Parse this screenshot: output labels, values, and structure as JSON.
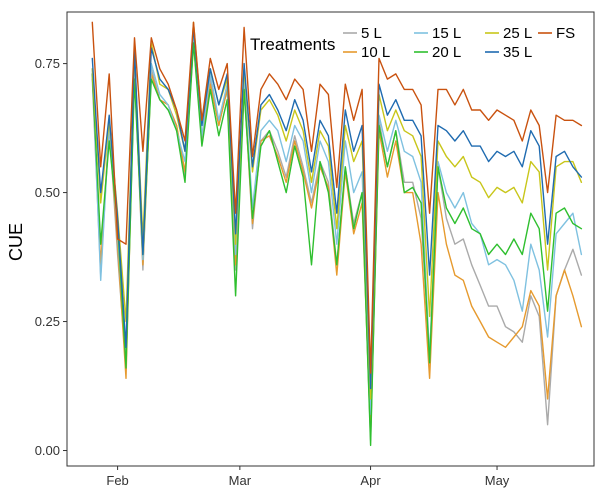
{
  "chart_data": {
    "type": "line",
    "title": "",
    "xlabel": "",
    "ylabel": "CUE",
    "xlim": [
      "2020-01-20",
      "2020-05-24"
    ],
    "ylim": [
      -0.03,
      0.85
    ],
    "grid": false,
    "x_ticks": [
      {
        "label": "Feb",
        "date": "2020-02-01"
      },
      {
        "label": "Mar",
        "date": "2020-03-01"
      },
      {
        "label": "Apr",
        "date": "2020-04-01"
      },
      {
        "label": "May",
        "date": "2020-05-01"
      }
    ],
    "y_ticks": [
      0.0,
      0.25,
      0.5,
      0.75
    ],
    "y_tick_labels": [
      "0.00",
      "0.25",
      "0.50",
      "0.75"
    ],
    "legend": {
      "title": "Treatments",
      "position": "top-right",
      "columns": 4
    },
    "x": [
      "2020-01-26",
      "2020-01-28",
      "2020-01-30",
      "2020-02-01",
      "2020-02-03",
      "2020-02-05",
      "2020-02-07",
      "2020-02-09",
      "2020-02-11",
      "2020-02-13",
      "2020-02-15",
      "2020-02-17",
      "2020-02-19",
      "2020-02-21",
      "2020-02-23",
      "2020-02-25",
      "2020-02-27",
      "2020-02-29",
      "2020-03-02",
      "2020-03-04",
      "2020-03-06",
      "2020-03-08",
      "2020-03-10",
      "2020-03-12",
      "2020-03-14",
      "2020-03-16",
      "2020-03-18",
      "2020-03-20",
      "2020-03-22",
      "2020-03-24",
      "2020-03-26",
      "2020-03-28",
      "2020-03-30",
      "2020-04-01",
      "2020-04-03",
      "2020-04-05",
      "2020-04-07",
      "2020-04-09",
      "2020-04-11",
      "2020-04-13",
      "2020-04-15",
      "2020-04-17",
      "2020-04-19",
      "2020-04-21",
      "2020-04-23",
      "2020-04-25",
      "2020-04-27",
      "2020-04-29",
      "2020-05-01",
      "2020-05-03",
      "2020-05-05",
      "2020-05-07",
      "2020-05-09",
      "2020-05-11",
      "2020-05-13",
      "2020-05-15",
      "2020-05-17",
      "2020-05-19",
      "2020-05-21"
    ],
    "series": [
      {
        "name": "5 L",
        "color": "#aaaaaa",
        "values": [
          0.72,
          0.34,
          0.63,
          0.38,
          0.16,
          0.74,
          0.35,
          0.74,
          0.68,
          0.66,
          0.63,
          0.53,
          0.8,
          0.6,
          0.72,
          0.63,
          0.7,
          0.35,
          0.71,
          0.43,
          0.6,
          0.62,
          0.58,
          0.53,
          0.61,
          0.55,
          0.48,
          0.56,
          0.52,
          0.36,
          0.55,
          0.44,
          0.5,
          0.02,
          0.64,
          0.55,
          0.62,
          0.52,
          0.52,
          0.45,
          0.18,
          0.55,
          0.45,
          0.4,
          0.41,
          0.36,
          0.32,
          0.28,
          0.28,
          0.24,
          0.23,
          0.21,
          0.3,
          0.26,
          0.05,
          0.3,
          0.35,
          0.39,
          0.34
        ]
      },
      {
        "name": "10 L",
        "color": "#e69a2e",
        "values": [
          0.73,
          0.36,
          0.63,
          0.4,
          0.14,
          0.74,
          0.36,
          0.73,
          0.68,
          0.67,
          0.63,
          0.54,
          0.79,
          0.61,
          0.71,
          0.63,
          0.7,
          0.36,
          0.7,
          0.44,
          0.6,
          0.61,
          0.57,
          0.52,
          0.6,
          0.54,
          0.47,
          0.55,
          0.51,
          0.34,
          0.54,
          0.42,
          0.48,
          0.03,
          0.62,
          0.53,
          0.6,
          0.5,
          0.5,
          0.4,
          0.14,
          0.5,
          0.4,
          0.34,
          0.33,
          0.28,
          0.25,
          0.22,
          0.21,
          0.2,
          0.22,
          0.24,
          0.31,
          0.28,
          0.1,
          0.3,
          0.35,
          0.3,
          0.24
        ]
      },
      {
        "name": "15 L",
        "color": "#7fc1e0",
        "values": [
          0.74,
          0.33,
          0.63,
          0.42,
          0.18,
          0.75,
          0.37,
          0.75,
          0.69,
          0.67,
          0.62,
          0.56,
          0.81,
          0.61,
          0.73,
          0.64,
          0.71,
          0.38,
          0.72,
          0.47,
          0.62,
          0.64,
          0.62,
          0.56,
          0.63,
          0.6,
          0.5,
          0.6,
          0.56,
          0.4,
          0.6,
          0.5,
          0.54,
          0.07,
          0.65,
          0.58,
          0.64,
          0.58,
          0.57,
          0.52,
          0.18,
          0.56,
          0.5,
          0.47,
          0.5,
          0.44,
          0.42,
          0.36,
          0.37,
          0.36,
          0.33,
          0.27,
          0.4,
          0.35,
          0.22,
          0.42,
          0.44,
          0.46,
          0.38
        ]
      },
      {
        "name": "20 L",
        "color": "#2fbf2f",
        "values": [
          0.73,
          0.4,
          0.6,
          0.44,
          0.16,
          0.72,
          0.38,
          0.72,
          0.68,
          0.66,
          0.62,
          0.52,
          0.79,
          0.59,
          0.7,
          0.61,
          0.68,
          0.3,
          0.7,
          0.45,
          0.59,
          0.62,
          0.56,
          0.5,
          0.59,
          0.53,
          0.36,
          0.56,
          0.5,
          0.36,
          0.55,
          0.43,
          0.5,
          0.01,
          0.63,
          0.55,
          0.62,
          0.5,
          0.51,
          0.48,
          0.17,
          0.55,
          0.47,
          0.44,
          0.47,
          0.43,
          0.42,
          0.38,
          0.4,
          0.38,
          0.41,
          0.38,
          0.46,
          0.43,
          0.27,
          0.46,
          0.47,
          0.44,
          0.43
        ]
      },
      {
        "name": "25 L",
        "color": "#c8c61a",
        "values": [
          0.74,
          0.48,
          0.64,
          0.46,
          0.25,
          0.77,
          0.41,
          0.79,
          0.71,
          0.7,
          0.65,
          0.58,
          0.83,
          0.64,
          0.74,
          0.67,
          0.72,
          0.4,
          0.74,
          0.54,
          0.66,
          0.68,
          0.65,
          0.6,
          0.66,
          0.62,
          0.52,
          0.62,
          0.59,
          0.43,
          0.63,
          0.56,
          0.6,
          0.1,
          0.69,
          0.62,
          0.66,
          0.62,
          0.61,
          0.57,
          0.26,
          0.6,
          0.57,
          0.55,
          0.57,
          0.53,
          0.52,
          0.49,
          0.51,
          0.5,
          0.51,
          0.48,
          0.56,
          0.54,
          0.35,
          0.55,
          0.56,
          0.56,
          0.52
        ]
      },
      {
        "name": "35 L",
        "color": "#1f6bb0",
        "values": [
          0.76,
          0.5,
          0.65,
          0.45,
          0.2,
          0.78,
          0.38,
          0.78,
          0.72,
          0.7,
          0.66,
          0.58,
          0.82,
          0.63,
          0.74,
          0.67,
          0.73,
          0.42,
          0.75,
          0.55,
          0.67,
          0.69,
          0.66,
          0.62,
          0.68,
          0.64,
          0.54,
          0.64,
          0.61,
          0.46,
          0.66,
          0.58,
          0.63,
          0.12,
          0.71,
          0.65,
          0.68,
          0.64,
          0.64,
          0.61,
          0.34,
          0.63,
          0.62,
          0.6,
          0.62,
          0.59,
          0.59,
          0.56,
          0.58,
          0.57,
          0.58,
          0.55,
          0.62,
          0.59,
          0.4,
          0.57,
          0.58,
          0.55,
          0.53
        ]
      },
      {
        "name": "FS",
        "color": "#c9520f",
        "values": [
          0.83,
          0.55,
          0.73,
          0.41,
          0.4,
          0.8,
          0.58,
          0.8,
          0.74,
          0.71,
          0.66,
          0.6,
          0.83,
          0.64,
          0.76,
          0.7,
          0.75,
          0.46,
          0.82,
          0.57,
          0.7,
          0.73,
          0.71,
          0.68,
          0.72,
          0.7,
          0.58,
          0.71,
          0.69,
          0.51,
          0.71,
          0.64,
          0.7,
          0.15,
          0.76,
          0.72,
          0.73,
          0.7,
          0.7,
          0.67,
          0.46,
          0.7,
          0.7,
          0.67,
          0.7,
          0.66,
          0.66,
          0.64,
          0.66,
          0.65,
          0.64,
          0.6,
          0.66,
          0.63,
          0.5,
          0.65,
          0.64,
          0.64,
          0.63
        ]
      }
    ]
  }
}
